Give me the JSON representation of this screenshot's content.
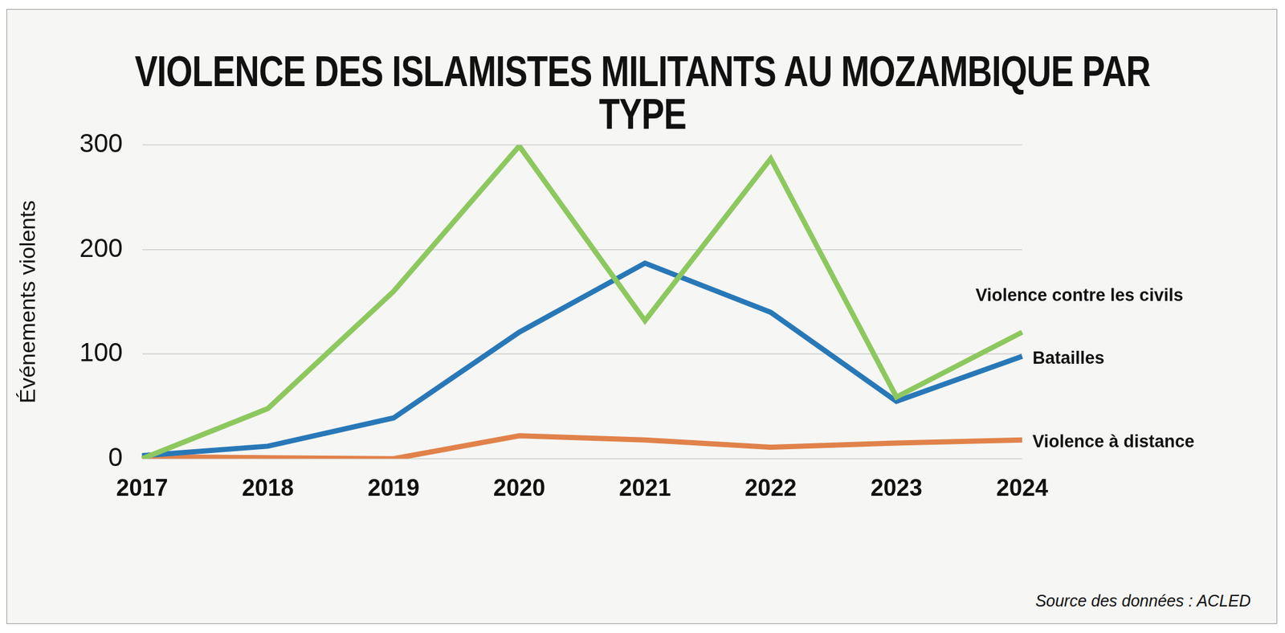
{
  "chart_data": {
    "type": "line",
    "title": "VIOLENCE DES ISLAMISTES MILITANTS AU MOZAMBIQUE PAR TYPE",
    "y_label": "Événements violents",
    "source": "Source des données : ACLED",
    "categories": [
      "2017",
      "2018",
      "2019",
      "2020",
      "2021",
      "2022",
      "2023",
      "2024"
    ],
    "series": [
      {
        "name": "Violence contre les civils",
        "color": "#8dc85f",
        "values": [
          0,
          48,
          160,
          299,
          132,
          287,
          59,
          121
        ]
      },
      {
        "name": "Batailles",
        "color": "#2878b8",
        "values": [
          3,
          12,
          39,
          121,
          187,
          140,
          55,
          98
        ]
      },
      {
        "name": "Violence à distance",
        "color": "#e0824a",
        "values": [
          2,
          1,
          0,
          22,
          18,
          11,
          15,
          18
        ]
      }
    ],
    "ylim": [
      0,
      300
    ],
    "yticks": [
      0,
      100,
      200,
      300
    ],
    "grid": true
  }
}
